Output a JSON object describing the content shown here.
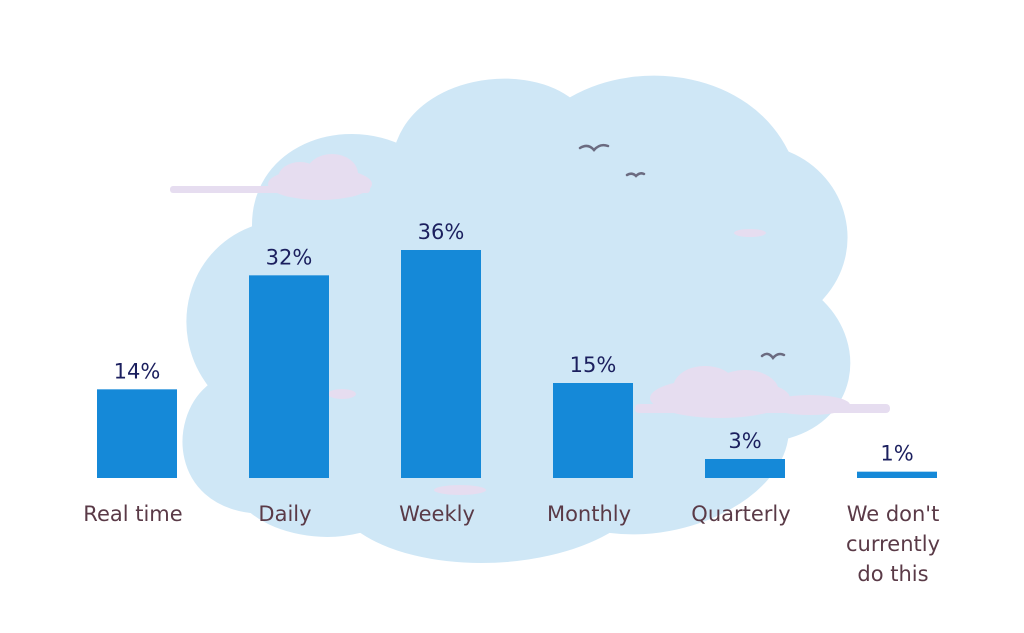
{
  "chart_data": {
    "type": "bar",
    "categories": [
      "Real time",
      "Daily",
      "Weekly",
      "Monthly",
      "Quarterly",
      "We don't currently do this"
    ],
    "category_lines": [
      [
        "Real time"
      ],
      [
        "Daily"
      ],
      [
        "Weekly"
      ],
      [
        "Monthly"
      ],
      [
        "Quarterly"
      ],
      [
        "We don't",
        "currently",
        "do this"
      ]
    ],
    "values": [
      14,
      32,
      36,
      15,
      3,
      1
    ],
    "value_labels": [
      "14%",
      "32%",
      "36%",
      "15%",
      "3%",
      "1%"
    ],
    "ylim": [
      0,
      36
    ],
    "grid": false,
    "legend": "none",
    "colors": {
      "bar": "#1589d8",
      "value_text": "#1b1f5e",
      "category_text": "#5a3a47",
      "cloud_fill": "#cfe7f6",
      "cloud_edge": "#ffffff",
      "small_cloud": "#e6ddf0",
      "bird": "#6b6b80"
    }
  }
}
